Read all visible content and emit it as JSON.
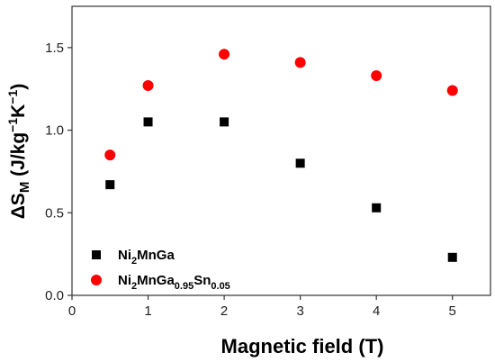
{
  "chart_data": {
    "type": "scatter",
    "title": "",
    "xlabel": "Magnetic field (T)",
    "ylabel": {
      "prefix": "ΔS",
      "sub": "M",
      "units_open": " (J/kg",
      "sup1": "−1",
      "units_mid": "K",
      "sup2": "−1",
      "units_close": ")"
    },
    "xlim": [
      0,
      5.5
    ],
    "ylim": [
      0,
      1.75
    ],
    "xticks": [
      0,
      1,
      2,
      3,
      4,
      5
    ],
    "yticks": [
      0.0,
      0.5,
      1.0,
      1.5
    ],
    "xtick_labels": [
      "0",
      "1",
      "2",
      "3",
      "4",
      "5"
    ],
    "ytick_labels": [
      "0.0",
      "0.5",
      "1.0",
      "1.5"
    ],
    "grid": false,
    "legend_position": "bottom-left",
    "series": [
      {
        "label_parts": [
          {
            "t": "Ni",
            "sub": false
          },
          {
            "t": "2",
            "sub": true
          },
          {
            "t": "MnGa",
            "sub": false
          }
        ],
        "marker": "square",
        "color": "#000000",
        "x": [
          0.5,
          1,
          2,
          3,
          4,
          5
        ],
        "y": [
          0.67,
          1.05,
          1.05,
          0.8,
          0.53,
          0.23
        ]
      },
      {
        "label_parts": [
          {
            "t": "Ni",
            "sub": false
          },
          {
            "t": "2",
            "sub": true
          },
          {
            "t": "MnGa",
            "sub": false
          },
          {
            "t": "0.95",
            "sub": true
          },
          {
            "t": "Sn",
            "sub": false
          },
          {
            "t": "0.05",
            "sub": true
          }
        ],
        "marker": "circle",
        "color": "#ff0000",
        "x": [
          0.5,
          1,
          2,
          3,
          4,
          5
        ],
        "y": [
          0.85,
          1.27,
          1.46,
          1.41,
          1.33,
          1.24
        ]
      }
    ]
  }
}
